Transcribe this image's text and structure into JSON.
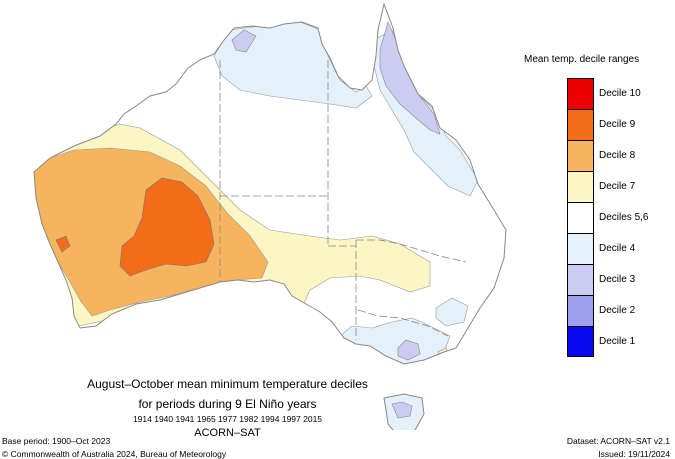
{
  "map": {
    "legend_title": "Mean temp. decile ranges",
    "legend": [
      {
        "label": "Decile 10",
        "color": "#ee0000"
      },
      {
        "label": "Decile 9",
        "color": "#f26c1a"
      },
      {
        "label": "Decile 8",
        "color": "#f6b45e"
      },
      {
        "label": "Decile 7",
        "color": "#fcf6c4"
      },
      {
        "label": "Deciles 5,6",
        "color": "#ffffff"
      },
      {
        "label": "Decile 4",
        "color": "#e4f0fa"
      },
      {
        "label": "Decile 3",
        "color": "#ccccf2"
      },
      {
        "label": "Decile 2",
        "color": "#9f9ff0"
      },
      {
        "label": "Decile 1",
        "color": "#0a0af2"
      }
    ],
    "title_line1": "August–October mean minimum temperature deciles",
    "title_line2": "for periods during 9 El Niño years",
    "years": "1914 1940 1941 1965 1977 1982 1994 1997 2015",
    "dataset_title": "ACORN–SAT",
    "base_period": "Base period: 1900–Oct 2023",
    "copyright": "© Commonwealth of Australia 2024, Bureau of Meteorology",
    "dataset_version": "Dataset: ACORN–SAT v2.1",
    "issued": "Issued: 19/11/2024"
  }
}
